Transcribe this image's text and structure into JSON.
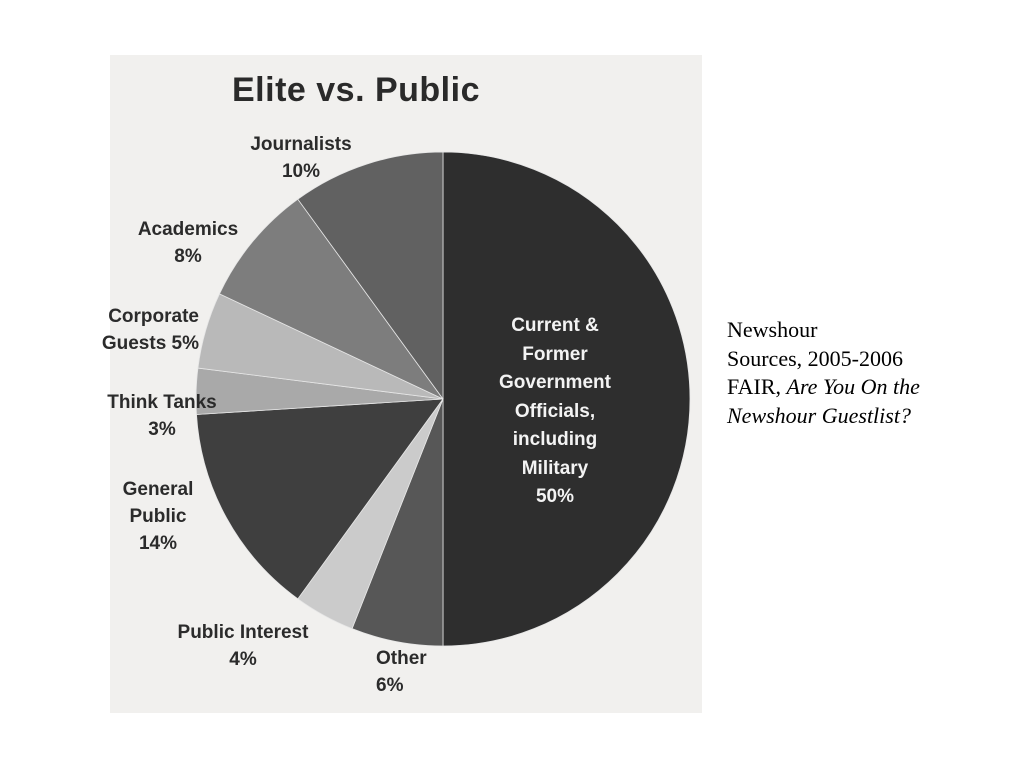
{
  "chart_data": {
    "type": "pie",
    "title": "Elite vs. Public",
    "slices": [
      {
        "label": "Current & Former Government Officials, including Military",
        "display": "Current &\nFormer\nGovernment\nOfficials,\nincluding\nMilitary\n50%",
        "value": 50,
        "color": "#2e2e2e"
      },
      {
        "label": "Other",
        "display": "Other\n6%",
        "value": 6,
        "color": "#575757"
      },
      {
        "label": "Public Interest",
        "display": "Public Interest\n4%",
        "value": 4,
        "color": "#cbcbcb"
      },
      {
        "label": "General Public",
        "display": "General\nPublic\n14%",
        "value": 14,
        "color": "#3f3f3f"
      },
      {
        "label": "Think Tanks",
        "display": "Think Tanks\n3%",
        "value": 3,
        "color": "#a9a9a9"
      },
      {
        "label": "Corporate Guests",
        "display": "Corporate\nGuests 5%",
        "value": 5,
        "color": "#b9b9b9"
      },
      {
        "label": "Academics",
        "display": "Academics\n8%",
        "value": 8,
        "color": "#7d7d7d"
      },
      {
        "label": "Journalists",
        "display": "Journalists\n10%",
        "value": 10,
        "color": "#616161"
      }
    ],
    "start_angle": "12 o'clock",
    "direction": "clockwise",
    "legend": "none"
  },
  "source": {
    "line1": "Newshour",
    "line2": "Sources, 2005-2006",
    "line3_prefix": "FAIR, ",
    "line3_italic": "Are You On the",
    "line4_italic": "Newshour Guestlist?"
  }
}
